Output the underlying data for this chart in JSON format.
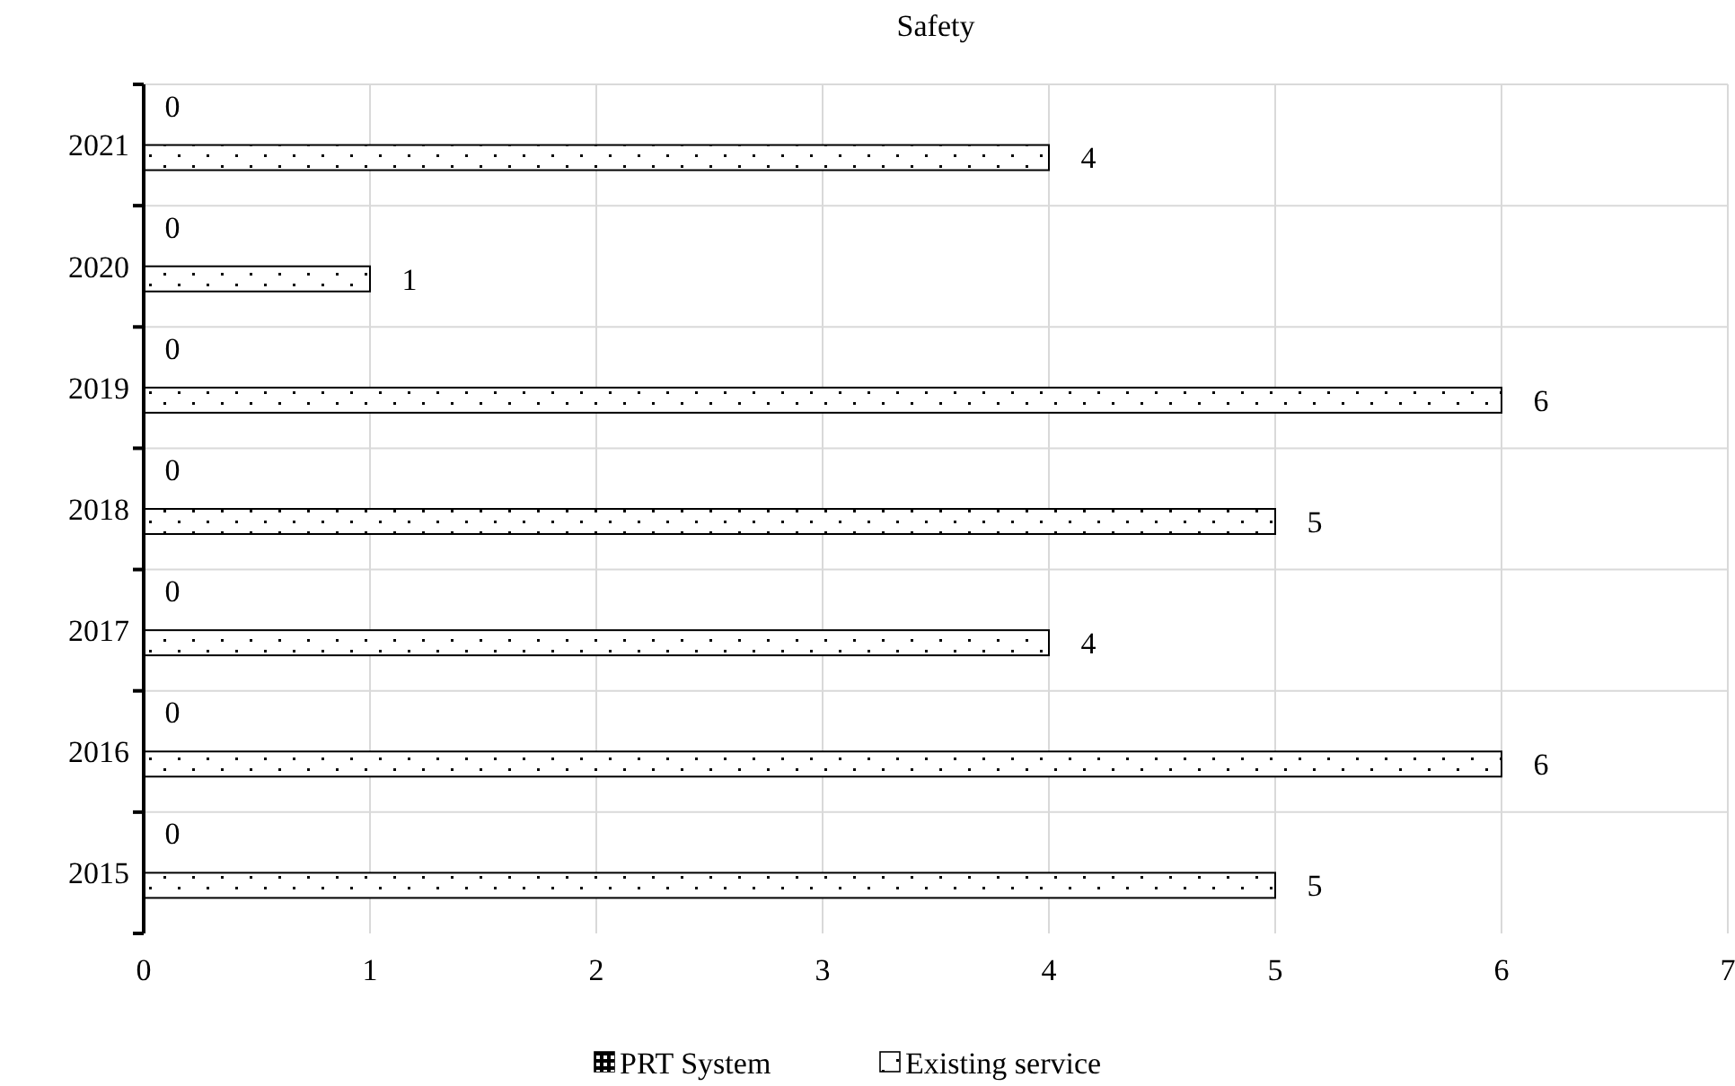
{
  "chart_data": {
    "type": "bar",
    "orientation": "horizontal",
    "title": "Safety",
    "categories": [
      "2021",
      "2020",
      "2019",
      "2018",
      "2017",
      "2016",
      "2015"
    ],
    "series": [
      {
        "name": "PRT System",
        "color": "#000000",
        "values": [
          0,
          0,
          0,
          0,
          0,
          0,
          0
        ]
      },
      {
        "name": "Existing service",
        "color": "#ffffff",
        "values": [
          4,
          1,
          6,
          5,
          4,
          6,
          5
        ]
      }
    ],
    "xlim": [
      0,
      7
    ],
    "xticks": [
      0,
      1,
      2,
      3,
      4,
      5,
      6,
      7
    ],
    "grid": true,
    "legend": "bottom",
    "data_labels": true
  }
}
